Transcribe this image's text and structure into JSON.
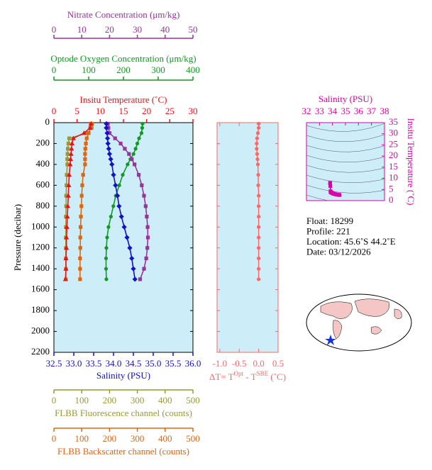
{
  "chart_data": [
    {
      "type": "profile",
      "ylabel": "Pressure (decibar)",
      "ylim": [
        0,
        2200
      ],
      "yticks": [
        0,
        200,
        400,
        600,
        800,
        1000,
        1200,
        1400,
        1600,
        1800,
        2000,
        2200
      ],
      "y": [
        10,
        50,
        100,
        150,
        200,
        250,
        300,
        350,
        400,
        500,
        600,
        700,
        800,
        900,
        1000,
        1100,
        1200,
        1300,
        1400,
        1500
      ],
      "axes": [
        {
          "label": "Nitrate Concentration (μm/kg)",
          "color": "#993399",
          "xlim": [
            0,
            50
          ],
          "xticks": [
            0,
            10,
            20,
            30,
            40,
            50
          ]
        },
        {
          "label": "Optode Oxygen Concentration (μm/kg)",
          "color": "#119922",
          "xlim": [
            0,
            400
          ],
          "xticks": [
            0,
            100,
            200,
            300,
            400
          ]
        },
        {
          "label": "Insitu Temperature (˚C)",
          "color": "#ee1111",
          "xlim": [
            0,
            30
          ],
          "xticks": [
            0,
            5,
            10,
            15,
            20,
            25,
            30
          ]
        },
        {
          "label": "Salinity (PSU)",
          "color": "#1111cc",
          "xlim": [
            32.5,
            36.0
          ],
          "xticks": [
            {
              "value": 32.5,
              "label": "32.5"
            },
            {
              "value": 33,
              "label": "33.0"
            },
            {
              "value": 33.5,
              "label": "33.5"
            },
            {
              "value": 34,
              "label": "34.0"
            },
            {
              "value": 34.5,
              "label": "34.5"
            },
            {
              "value": 35,
              "label": "35.0"
            },
            {
              "value": 35.5,
              "label": "35.5"
            },
            {
              "value": 36,
              "label": "36.0"
            }
          ]
        },
        {
          "label": "FLBB Fluorescence channel (counts)",
          "color": "#999933",
          "xlim": [
            0,
            500
          ],
          "xticks": [
            0,
            100,
            200,
            300,
            400,
            500
          ]
        },
        {
          "label": "FLBB Backscatter channel (counts)",
          "color": "#dd6611",
          "xlim": [
            0,
            500
          ],
          "xticks": [
            0,
            100,
            200,
            300,
            400,
            500
          ]
        }
      ],
      "series": [
        {
          "axis": 4,
          "color": "#999933",
          "marker": "square",
          "values": [
            138,
            136,
            120,
            55,
            52,
            50,
            49,
            48,
            48,
            46,
            45,
            44,
            44,
            43,
            43,
            43,
            43,
            43,
            43,
            43
          ]
        },
        {
          "axis": 5,
          "color": "#dd6611",
          "marker": "square",
          "values": [
            133,
            131,
            125,
            118,
            115,
            113,
            112,
            112,
            112,
            105,
            102,
            100,
            99,
            97,
            96,
            95,
            95,
            94,
            94,
            94
          ]
        },
        {
          "axis": 1,
          "color": "#119922",
          "marker": "circle",
          "values": [
            255,
            254,
            252,
            245,
            240,
            235,
            229,
            220,
            212,
            198,
            188,
            178,
            171,
            164,
            157,
            153,
            151,
            150,
            150,
            151
          ]
        },
        {
          "axis": 0,
          "color": "#993399",
          "marker": "square",
          "values": [
            19.4,
            19.6,
            20,
            22,
            24,
            25.5,
            27,
            28,
            29,
            30.5,
            31.6,
            32.4,
            33,
            33.4,
            33.7,
            33.8,
            33.6,
            33.2,
            32.4,
            31
          ]
        },
        {
          "axis": 3,
          "color": "#1111cc",
          "marker": "diamond",
          "values": [
            33.82,
            33.82,
            33.84,
            33.85,
            33.86,
            33.88,
            33.9,
            33.93,
            33.96,
            34.0,
            34.05,
            34.1,
            34.14,
            34.2,
            34.27,
            34.34,
            34.41,
            34.46,
            34.5,
            34.54
          ]
        },
        {
          "axis": 2,
          "color": "#ee1111",
          "marker": "triangle",
          "values": [
            8.0,
            7.8,
            6.5,
            4.2,
            3.9,
            3.8,
            3.7,
            3.6,
            3.5,
            3.3,
            3.2,
            3.1,
            3.0,
            2.9,
            2.8,
            2.7,
            2.7,
            2.6,
            2.6,
            2.5
          ]
        }
      ]
    },
    {
      "type": "profile",
      "xlabel": [
        "ΔT= T",
        "Opt",
        " - T",
        "SBE",
        " (˚C)"
      ],
      "color": "#ff6666",
      "xlim": [
        -1.07,
        0.5
      ],
      "xticks": [
        {
          "value": -1,
          "label": "-1.0"
        },
        {
          "value": -0.5,
          "label": "-0.5"
        },
        {
          "value": 0,
          "label": "0.0"
        },
        0.5
      ],
      "values": [
        0,
        0,
        -0.02,
        -0.04,
        -0.05,
        -0.05,
        -0.04,
        -0.03,
        -0.02,
        -0.01,
        -0.01,
        0,
        0,
        0,
        0,
        0,
        0,
        0,
        0,
        0
      ]
    },
    {
      "type": "scatter",
      "xlabel": "Salinity (PSU)",
      "ylabel": "Insitu Temperature (˚C)",
      "color": "#dd00aa",
      "xlim": [
        32,
        38
      ],
      "xticks": [
        32,
        33,
        34,
        35,
        36,
        37,
        38
      ],
      "ylim": [
        0,
        35
      ],
      "yticks": [
        0,
        5,
        10,
        15,
        20,
        25,
        30,
        35
      ],
      "x": [
        33.82,
        33.82,
        33.84,
        33.85,
        33.86,
        33.88,
        33.9,
        33.93,
        33.96,
        34.0,
        34.05,
        34.1,
        34.14,
        34.2,
        34.27,
        34.34,
        34.41,
        34.46,
        34.5,
        34.54
      ],
      "values": [
        8.0,
        7.8,
        6.5,
        4.2,
        3.9,
        3.8,
        3.7,
        3.6,
        3.5,
        3.3,
        3.2,
        3.1,
        3.0,
        2.9,
        2.8,
        2.7,
        2.7,
        2.6,
        2.6,
        2.5
      ]
    }
  ],
  "info": [
    "Float:  18299",
    "Profile:  221",
    "Location:  45.6˚S  44.2˚E",
    "Date:  03/12/2026"
  ]
}
